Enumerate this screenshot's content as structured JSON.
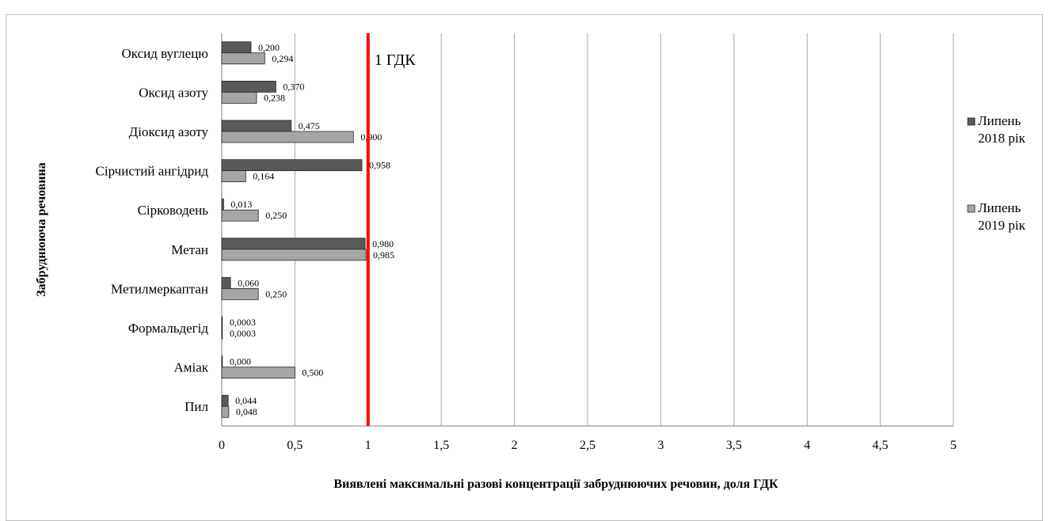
{
  "chart_data": {
    "type": "bar",
    "orientation": "horizontal",
    "categories": [
      "Оксид вуглецю",
      "Оксид азоту",
      "Діоксид азоту",
      "Сірчистий ангідрид",
      "Сірководень",
      "Метан",
      "Метилмеркаптан",
      "Формальдегід",
      "Аміак",
      "Пил"
    ],
    "series": [
      {
        "name": "Липень 2018 рік",
        "legend_lines": [
          "Липень",
          "2018 рік"
        ],
        "color": "#595959",
        "values": [
          0.2,
          0.37,
          0.475,
          0.958,
          0.013,
          0.98,
          0.06,
          0.0003,
          0.0,
          0.044
        ],
        "labels": [
          "0,200",
          "0,370",
          "0,475",
          "0,958",
          "0,013",
          "0,980",
          "0,060",
          "0,0003",
          "0,000",
          "0,044"
        ]
      },
      {
        "name": "Липень 2019 рік",
        "legend_lines": [
          "Липень",
          "2019 рік"
        ],
        "color": "#a6a6a6",
        "values": [
          0.294,
          0.238,
          0.9,
          0.164,
          0.25,
          0.985,
          0.25,
          0.0003,
          0.5,
          0.048
        ],
        "labels": [
          "0,294",
          "0,238",
          "0,900",
          "0,164",
          "0,250",
          "0,985",
          "0,250",
          "0,0003",
          "0,500",
          "0,048"
        ]
      }
    ],
    "xlim": [
      0,
      5
    ],
    "x_ticks": [
      0,
      0.5,
      1,
      1.5,
      2,
      2.5,
      3,
      3.5,
      4,
      4.5,
      5
    ],
    "x_tick_labels": [
      "0",
      "0,5",
      "1",
      "1,5",
      "2",
      "2,5",
      "3",
      "3,5",
      "4",
      "4,5",
      "5"
    ],
    "xlabel": "Виявлені максимальні  разові концентрації забруднюючих речовин, доля ГДК",
    "ylabel": "Забруднююча речовина",
    "grid": "vertical",
    "legend_position": "right",
    "reference_line": {
      "value": 1,
      "label": "1 ГДК",
      "color": "#ff0000"
    }
  }
}
